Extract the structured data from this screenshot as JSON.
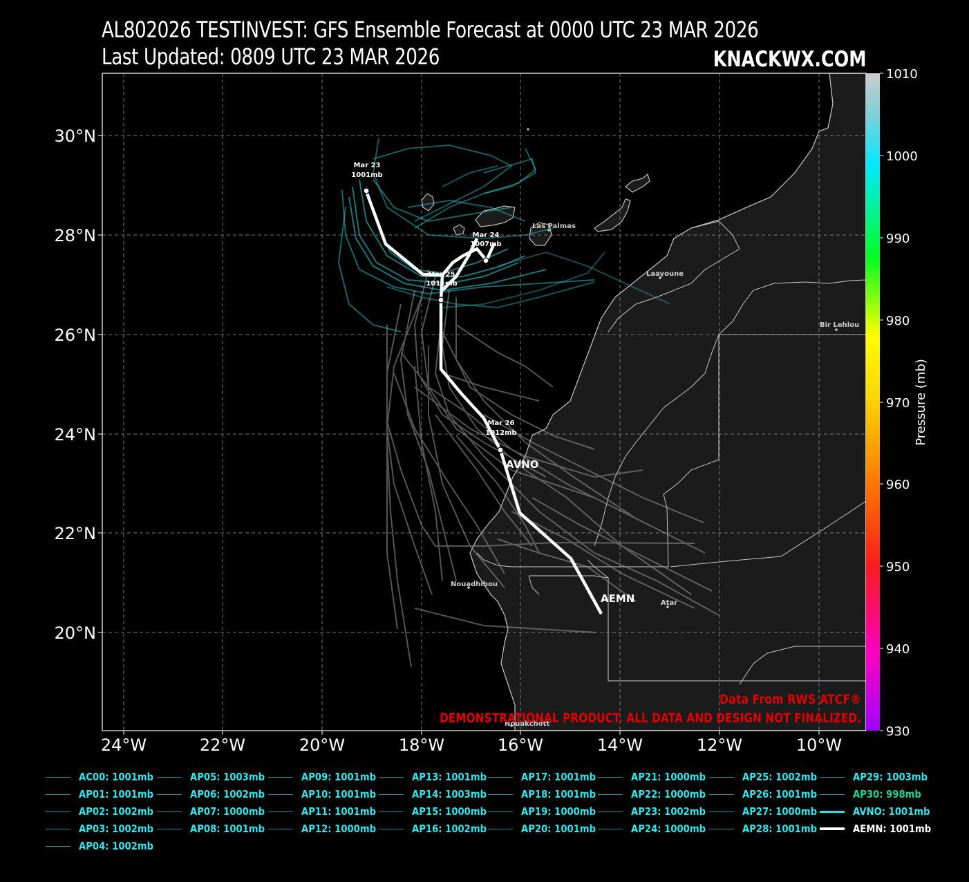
{
  "header": {
    "title_line1": "AL802026 TESTINVEST: GFS Ensemble Forecast at 0000 UTC 23 MAR 2026",
    "title_line2": "Last Updated: 0809 UTC 23 MAR 2026",
    "brand": "KNACKWX.COM"
  },
  "axes": {
    "lat_labels": [
      "30°N",
      "28°N",
      "26°N",
      "24°N",
      "22°N",
      "20°N"
    ],
    "lon_labels": [
      "24°W",
      "22°W",
      "20°W",
      "18°W",
      "16°W",
      "14°W",
      "12°W",
      "10°W"
    ]
  },
  "colorbar": {
    "label": "Pressure (mb)",
    "ticks": [
      "1010",
      "1000",
      "990",
      "980",
      "970",
      "960",
      "950",
      "940",
      "930"
    ]
  },
  "places": [
    "Las Palmas",
    "Laayoune",
    "Bir Lehlou",
    "Nouadhibou",
    "Atar",
    "Nouakchott"
  ],
  "track_labels": {
    "mar23": [
      "Mar 23",
      "1001mb"
    ],
    "mar24": [
      "Mar 24",
      "1007mb"
    ],
    "mar25": [
      "Mar 25",
      "1011mb"
    ],
    "mar26": [
      "Mar 26",
      "1012mb"
    ],
    "avno": "AVNO",
    "aemn": "AEMN"
  },
  "notes": {
    "source": "Data From RWS ATCF®",
    "disclaimer": "DEMONSTRATIONAL PRODUCT. ALL DATA AND DESIGN NOT FINALIZED."
  },
  "legend": [
    "AC00: 1001mb",
    "AP01: 1001mb",
    "AP02: 1002mb",
    "AP03: 1002mb",
    "AP04: 1002mb",
    "AP05: 1003mb",
    "AP06: 1002mb",
    "AP07: 1000mb",
    "AP08: 1001mb",
    "AP09: 1001mb",
    "AP10: 1001mb",
    "AP11: 1001mb",
    "AP12: 1000mb",
    "AP13: 1001mb",
    "AP14: 1003mb",
    "AP15: 1000mb",
    "AP16: 1002mb",
    "AP17: 1001mb",
    "AP18: 1001mb",
    "AP19: 1000mb",
    "AP20: 1001mb",
    "AP21: 1000mb",
    "AP22: 1000mb",
    "AP23: 1002mb",
    "AP24: 1000mb",
    "AP25: 1002mb",
    "AP26: 1001mb",
    "AP27: 1000mb",
    "AP28: 1001mb",
    "AP29: 1003mb",
    "AP30: 998mb",
    "AVNO: 1001mb",
    "AEMN: 1001mb"
  ],
  "colors": {
    "ensemble": "#2a8f93",
    "avno": "#1ee4e8",
    "aemn": "#ffffff",
    "notes": "#e00000",
    "land": "#1b1b1b"
  }
}
